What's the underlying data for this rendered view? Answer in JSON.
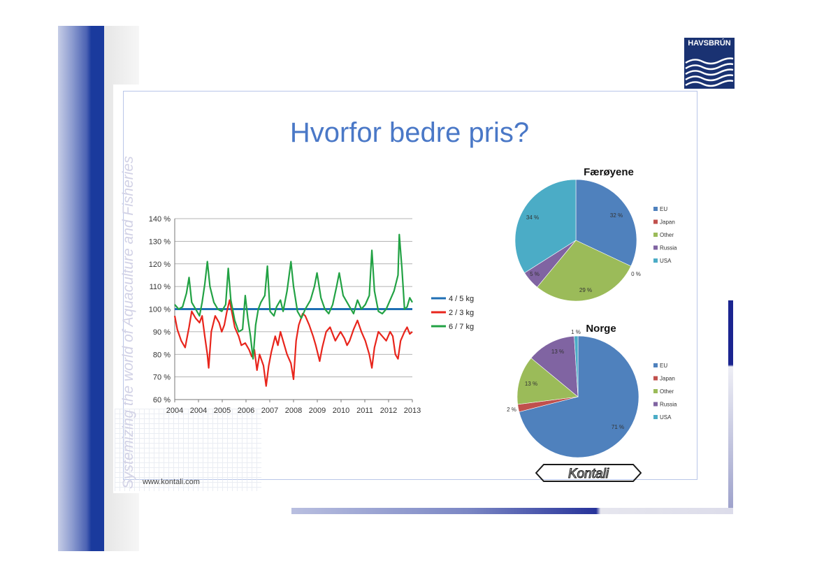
{
  "slide": {
    "title": "Hvorfor bedre pris?",
    "url": "www.kontali.com",
    "watermark": "Systemizing the world of Aquaculture and Fisheries",
    "logo_text": "HAVSBRÚN",
    "kontali_text": "Kontali"
  },
  "colors": {
    "title": "#4a78c7",
    "eu": "#4f81bd",
    "japan": "#c0504d",
    "other": "#9bbb59",
    "russia": "#8064a2",
    "usa": "#4bacc6"
  },
  "chart_data": [
    {
      "type": "line",
      "title": "",
      "xlabel": "",
      "ylabel": "",
      "ylim": [
        60,
        140
      ],
      "y_ticks": [
        "60 %",
        "70 %",
        "80 %",
        "90 %",
        "100 %",
        "110 %",
        "120 %",
        "130 %",
        "140 %"
      ],
      "x_ticks": [
        "2004",
        "2004",
        "2005",
        "2006",
        "2007",
        "2008",
        "2009",
        "2010",
        "2011",
        "2012",
        "2013"
      ],
      "xlim": [
        2004.0,
        2013.1
      ],
      "grid": true,
      "legend": "right",
      "series": [
        {
          "name": "4 / 5 kg",
          "color": "#1f6fb4",
          "points": [
            [
              2004.0,
              100
            ],
            [
              2013.1,
              100
            ]
          ]
        },
        {
          "name": "2 / 3 kg",
          "color": "#e8251c",
          "points": [
            [
              2004.0,
              97
            ],
            [
              2004.1,
              91
            ],
            [
              2004.25,
              86
            ],
            [
              2004.4,
              83
            ],
            [
              2004.55,
              92
            ],
            [
              2004.65,
              99
            ],
            [
              2004.8,
              96
            ],
            [
              2004.95,
              94
            ],
            [
              2005.05,
              97
            ],
            [
              2005.15,
              88
            ],
            [
              2005.25,
              80
            ],
            [
              2005.3,
              74
            ],
            [
              2005.4,
              90
            ],
            [
              2005.55,
              97
            ],
            [
              2005.7,
              94
            ],
            [
              2005.8,
              90
            ],
            [
              2005.9,
              93
            ],
            [
              2006.0,
              99
            ],
            [
              2006.1,
              104
            ],
            [
              2006.2,
              98
            ],
            [
              2006.3,
              92
            ],
            [
              2006.45,
              88
            ],
            [
              2006.55,
              84
            ],
            [
              2006.7,
              85
            ],
            [
              2006.85,
              82
            ],
            [
              2006.95,
              79
            ],
            [
              2007.05,
              82
            ],
            [
              2007.15,
              73
            ],
            [
              2007.25,
              80
            ],
            [
              2007.4,
              75
            ],
            [
              2007.5,
              66
            ],
            [
              2007.6,
              75
            ],
            [
              2007.7,
              81
            ],
            [
              2007.85,
              88
            ],
            [
              2007.95,
              84
            ],
            [
              2008.05,
              90
            ],
            [
              2008.2,
              84
            ],
            [
              2008.3,
              80
            ],
            [
              2008.45,
              76
            ],
            [
              2008.55,
              69
            ],
            [
              2008.65,
              86
            ],
            [
              2008.75,
              93
            ],
            [
              2008.9,
              98
            ],
            [
              2009.0,
              97
            ],
            [
              2009.15,
              93
            ],
            [
              2009.3,
              88
            ],
            [
              2009.4,
              84
            ],
            [
              2009.55,
              77
            ],
            [
              2009.65,
              83
            ],
            [
              2009.8,
              90
            ],
            [
              2009.95,
              92
            ],
            [
              2010.05,
              89
            ],
            [
              2010.15,
              86
            ],
            [
              2010.25,
              88
            ],
            [
              2010.35,
              90
            ],
            [
              2010.5,
              87
            ],
            [
              2010.6,
              84
            ],
            [
              2010.7,
              86
            ],
            [
              2010.85,
              91
            ],
            [
              2011.0,
              95
            ],
            [
              2011.15,
              90
            ],
            [
              2011.3,
              86
            ],
            [
              2011.45,
              80
            ],
            [
              2011.55,
              74
            ],
            [
              2011.65,
              83
            ],
            [
              2011.8,
              90
            ],
            [
              2011.95,
              88
            ],
            [
              2012.1,
              86
            ],
            [
              2012.25,
              90
            ],
            [
              2012.35,
              88
            ],
            [
              2012.45,
              80
            ],
            [
              2012.55,
              78
            ],
            [
              2012.65,
              86
            ],
            [
              2012.8,
              90
            ],
            [
              2012.9,
              92
            ],
            [
              2013.0,
              89
            ],
            [
              2013.1,
              90
            ]
          ]
        },
        {
          "name": "6 / 7 kg",
          "color": "#22a244",
          "points": [
            [
              2004.0,
              102
            ],
            [
              2004.15,
              100
            ],
            [
              2004.3,
              101
            ],
            [
              2004.45,
              107
            ],
            [
              2004.55,
              114
            ],
            [
              2004.65,
              103
            ],
            [
              2004.8,
              100
            ],
            [
              2004.95,
              97
            ],
            [
              2005.05,
              103
            ],
            [
              2005.15,
              111
            ],
            [
              2005.25,
              121
            ],
            [
              2005.35,
              110
            ],
            [
              2005.5,
              103
            ],
            [
              2005.65,
              100
            ],
            [
              2005.8,
              99
            ],
            [
              2005.95,
              102
            ],
            [
              2006.05,
              118
            ],
            [
              2006.15,
              104
            ],
            [
              2006.3,
              95
            ],
            [
              2006.45,
              90
            ],
            [
              2006.6,
              91
            ],
            [
              2006.7,
              106
            ],
            [
              2006.8,
              96
            ],
            [
              2006.9,
              88
            ],
            [
              2007.0,
              78
            ],
            [
              2007.1,
              93
            ],
            [
              2007.2,
              100
            ],
            [
              2007.3,
              103
            ],
            [
              2007.45,
              106
            ],
            [
              2007.55,
              119
            ],
            [
              2007.65,
              99
            ],
            [
              2007.8,
              97
            ],
            [
              2007.9,
              101
            ],
            [
              2008.05,
              104
            ],
            [
              2008.15,
              99
            ],
            [
              2008.3,
              108
            ],
            [
              2008.45,
              121
            ],
            [
              2008.55,
              110
            ],
            [
              2008.7,
              99
            ],
            [
              2008.85,
              96
            ],
            [
              2009.0,
              100
            ],
            [
              2009.2,
              104
            ],
            [
              2009.35,
              110
            ],
            [
              2009.45,
              116
            ],
            [
              2009.6,
              105
            ],
            [
              2009.75,
              100
            ],
            [
              2009.9,
              98
            ],
            [
              2010.05,
              102
            ],
            [
              2010.2,
              110
            ],
            [
              2010.3,
              116
            ],
            [
              2010.45,
              106
            ],
            [
              2010.6,
              103
            ],
            [
              2010.7,
              101
            ],
            [
              2010.85,
              98
            ],
            [
              2011.0,
              104
            ],
            [
              2011.15,
              100
            ],
            [
              2011.3,
              102
            ],
            [
              2011.45,
              106
            ],
            [
              2011.55,
              126
            ],
            [
              2011.65,
              108
            ],
            [
              2011.8,
              99
            ],
            [
              2011.95,
              98
            ],
            [
              2012.1,
              100
            ],
            [
              2012.25,
              104
            ],
            [
              2012.4,
              108
            ],
            [
              2012.55,
              115
            ],
            [
              2012.6,
              133
            ],
            [
              2012.7,
              118
            ],
            [
              2012.8,
              100
            ],
            [
              2012.9,
              101
            ],
            [
              2013.0,
              105
            ],
            [
              2013.1,
              103
            ]
          ]
        }
      ]
    },
    {
      "type": "pie",
      "title": "Færøyene",
      "legend": "right",
      "categories": [
        "EU",
        "Japan",
        "Other",
        "Russia",
        "USA"
      ],
      "values": [
        32,
        0,
        29,
        5,
        34
      ],
      "labels": [
        "32 %",
        "0 %",
        "29 %",
        "5 %",
        "34 %"
      ]
    },
    {
      "type": "pie",
      "title": "Norge",
      "legend": "right",
      "categories": [
        "EU",
        "Japan",
        "Other",
        "Russia",
        "USA"
      ],
      "values": [
        71,
        2,
        13,
        13,
        1
      ],
      "labels": [
        "71 %",
        "2 %",
        "13 %",
        "13 %",
        "1 %"
      ]
    }
  ]
}
